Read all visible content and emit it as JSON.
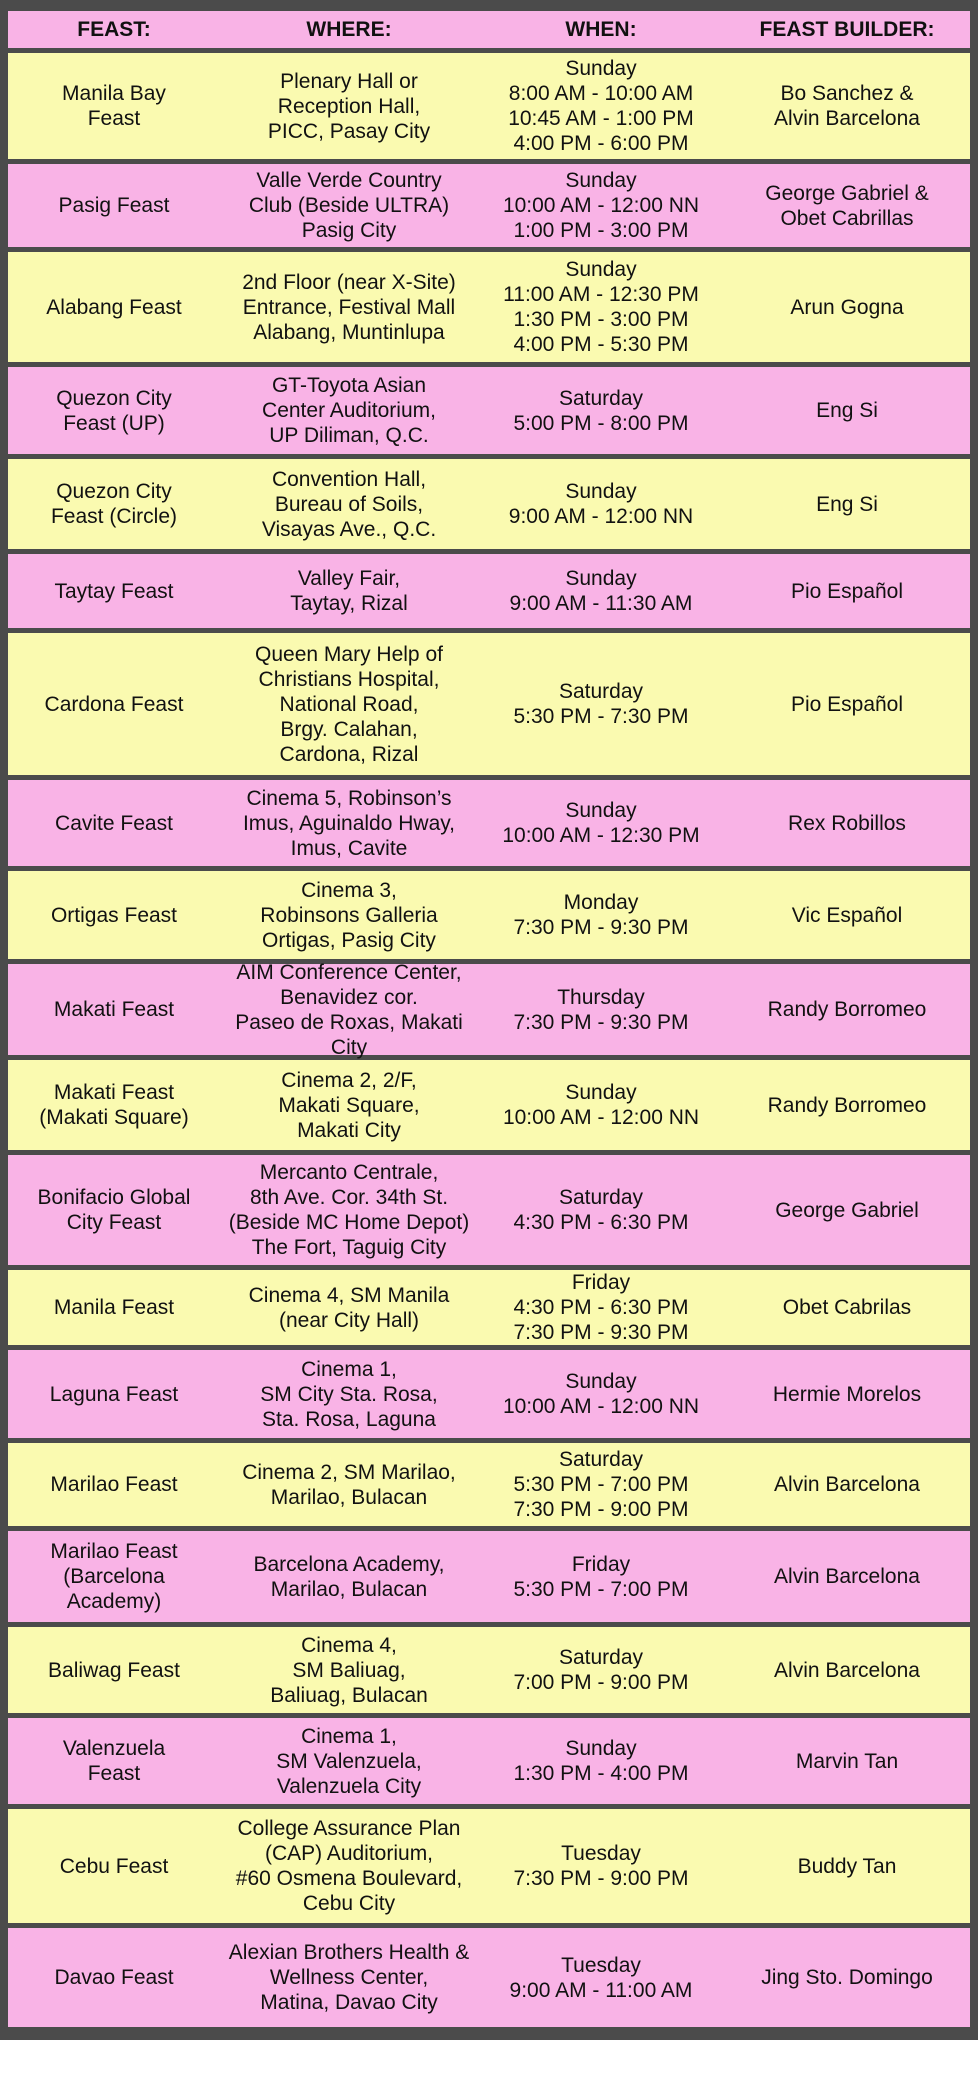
{
  "header": {
    "feast": "FEAST:",
    "where": "WHERE:",
    "when": "WHEN:",
    "builder": "FEAST BUILDER:"
  },
  "colors": {
    "odd_row": "#fafab0",
    "even_row": "#f9b3e6",
    "frame": "#4b4b4b"
  },
  "rows": [
    {
      "feast": [
        "Manila Bay",
        "Feast"
      ],
      "where": [
        "Plenary Hall or",
        "Reception Hall,",
        "PICC, Pasay City"
      ],
      "when": [
        "Sunday",
        "8:00 AM - 10:00 AM",
        "10:45 AM - 1:00 PM",
        "4:00 PM - 6:00 PM"
      ],
      "builder": [
        "Bo Sanchez &",
        "Alvin Barcelona"
      ]
    },
    {
      "feast": [
        "Pasig Feast"
      ],
      "where": [
        "Valle Verde Country",
        "Club (Beside ULTRA)",
        "Pasig City"
      ],
      "when": [
        "Sunday",
        "10:00 AM - 12:00 NN",
        "1:00 PM - 3:00 PM"
      ],
      "builder": [
        "George Gabriel &",
        "Obet Cabrillas"
      ]
    },
    {
      "feast": [
        "Alabang Feast"
      ],
      "where": [
        "2nd Floor (near X-Site)",
        "Entrance, Festival Mall",
        "Alabang, Muntinlupa"
      ],
      "when": [
        "Sunday",
        "11:00 AM - 12:30 PM",
        "1:30 PM - 3:00 PM",
        "4:00 PM - 5:30 PM"
      ],
      "builder": [
        "Arun Gogna"
      ]
    },
    {
      "feast": [
        "Quezon City",
        "Feast (UP)"
      ],
      "where": [
        "GT-Toyota Asian",
        "Center Auditorium,",
        "UP Diliman, Q.C."
      ],
      "when": [
        "Saturday",
        "5:00 PM - 8:00 PM"
      ],
      "builder": [
        "Eng Si"
      ]
    },
    {
      "feast": [
        "Quezon City",
        "Feast (Circle)"
      ],
      "where": [
        "Convention Hall,",
        "Bureau of Soils,",
        "Visayas Ave., Q.C."
      ],
      "when": [
        "Sunday",
        "9:00 AM - 12:00 NN"
      ],
      "builder": [
        "Eng Si"
      ]
    },
    {
      "feast": [
        "Taytay Feast"
      ],
      "where": [
        "Valley Fair,",
        "Taytay, Rizal"
      ],
      "when": [
        "Sunday",
        "9:00 AM - 11:30 AM"
      ],
      "builder": [
        "Pio Español"
      ]
    },
    {
      "feast": [
        "Cardona Feast"
      ],
      "where": [
        "Queen Mary Help of",
        "Christians Hospital,",
        "National Road,",
        "Brgy. Calahan,",
        "Cardona, Rizal"
      ],
      "when": [
        "Saturday",
        "5:30 PM - 7:30 PM"
      ],
      "builder": [
        "Pio Español"
      ]
    },
    {
      "feast": [
        "Cavite Feast"
      ],
      "where": [
        "Cinema 5, Robinson’s",
        "Imus, Aguinaldo Hway,",
        "Imus, Cavite"
      ],
      "when": [
        "Sunday",
        "10:00 AM - 12:30 PM"
      ],
      "builder": [
        "Rex Robillos"
      ]
    },
    {
      "feast": [
        "Ortigas Feast"
      ],
      "where": [
        "Cinema 3,",
        "Robinsons Galleria",
        "Ortigas, Pasig City"
      ],
      "when": [
        "Monday",
        "7:30 PM - 9:30 PM"
      ],
      "builder": [
        "Vic Español"
      ]
    },
    {
      "feast": [
        "Makati Feast"
      ],
      "where": [
        "AIM Conference Center,",
        "Benavidez cor.",
        "Paseo de Roxas, Makati City"
      ],
      "when": [
        "Thursday",
        "7:30 PM - 9:30 PM"
      ],
      "builder": [
        "Randy Borromeo"
      ]
    },
    {
      "feast": [
        "Makati Feast",
        "(Makati Square)"
      ],
      "where": [
        "Cinema 2, 2/F,",
        "Makati  Square,",
        "Makati City"
      ],
      "when": [
        "Sunday",
        "10:00 AM - 12:00 NN"
      ],
      "builder": [
        "Randy Borromeo"
      ]
    },
    {
      "feast": [
        "Bonifacio Global",
        "City Feast"
      ],
      "where": [
        "Mercanto Centrale,",
        "8th Ave. Cor. 34th St.",
        "(Beside MC Home Depot)",
        "The Fort, Taguig City"
      ],
      "when": [
        "Saturday",
        "4:30 PM - 6:30 PM"
      ],
      "builder": [
        "George Gabriel"
      ]
    },
    {
      "feast": [
        "Manila Feast"
      ],
      "where": [
        "Cinema 4, SM Manila",
        "(near City Hall)"
      ],
      "when": [
        "Friday",
        "4:30 PM - 6:30 PM",
        "7:30 PM - 9:30 PM"
      ],
      "builder": [
        "Obet Cabrilas"
      ]
    },
    {
      "feast": [
        "Laguna Feast"
      ],
      "where": [
        "Cinema 1,",
        "SM City Sta. Rosa,",
        "Sta. Rosa, Laguna"
      ],
      "when": [
        "Sunday",
        "10:00 AM - 12:00 NN"
      ],
      "builder": [
        "Hermie Morelos"
      ]
    },
    {
      "feast": [
        "Marilao Feast"
      ],
      "where": [
        "Cinema 2, SM Marilao,",
        "Marilao, Bulacan"
      ],
      "when": [
        "Saturday",
        "5:30 PM - 7:00 PM",
        "7:30 PM  -  9:00 PM"
      ],
      "builder": [
        "Alvin Barcelona"
      ]
    },
    {
      "feast": [
        "Marilao Feast",
        "(Barcelona",
        "Academy)"
      ],
      "where": [
        "Barcelona Academy,",
        "Marilao, Bulacan"
      ],
      "when": [
        "Friday",
        "5:30 PM - 7:00 PM"
      ],
      "builder": [
        "Alvin Barcelona"
      ]
    },
    {
      "feast": [
        "Baliwag Feast"
      ],
      "where": [
        "Cinema 4,",
        "SM Baliuag,",
        "Baliuag, Bulacan"
      ],
      "when": [
        "Saturday",
        "7:00 PM - 9:00 PM"
      ],
      "builder": [
        "Alvin Barcelona"
      ]
    },
    {
      "feast": [
        "Valenzuela",
        "Feast"
      ],
      "where": [
        "Cinema 1,",
        "SM Valenzuela,",
        "Valenzuela City"
      ],
      "when": [
        "Sunday",
        "1:30 PM - 4:00 PM"
      ],
      "builder": [
        "Marvin Tan"
      ]
    },
    {
      "feast": [
        "Cebu Feast"
      ],
      "where": [
        "College Assurance Plan",
        "(CAP) Auditorium,",
        "#60 Osmena Boulevard,",
        "Cebu City"
      ],
      "when": [
        "Tuesday",
        "7:30 PM - 9:00 PM"
      ],
      "builder": [
        "Buddy Tan"
      ]
    },
    {
      "feast": [
        "Davao Feast"
      ],
      "where": [
        "Alexian Brothers Health &",
        "Wellness Center,",
        "Matina, Davao City"
      ],
      "when": [
        "Tuesday",
        "9:00 AM - 11:00 AM"
      ],
      "builder": [
        "Jing Sto. Domingo"
      ]
    }
  ]
}
